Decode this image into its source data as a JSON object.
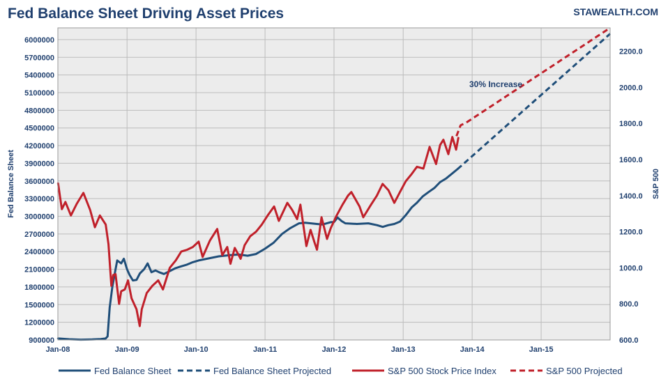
{
  "chart_data": {
    "type": "line",
    "title": "Fed Balance Sheet Driving Asset Prices",
    "brand": "STAWEALTH.COM",
    "annotation": "30% Increase",
    "grid": true,
    "legend_position": "bottom",
    "x_axis": {
      "type": "date",
      "range": [
        "2008-01-01",
        "2016-01-01"
      ],
      "ticks": [
        {
          "date": "2008-01-01",
          "label": "Jan-08"
        },
        {
          "date": "2009-01-01",
          "label": "Jan-09"
        },
        {
          "date": "2010-01-01",
          "label": "Jan-10"
        },
        {
          "date": "2011-01-01",
          "label": "Jan-11"
        },
        {
          "date": "2012-01-01",
          "label": "Jan-12"
        },
        {
          "date": "2013-01-01",
          "label": "Jan-13"
        },
        {
          "date": "2014-01-01",
          "label": "Jan-14"
        },
        {
          "date": "2015-01-01",
          "label": "Jan-15"
        }
      ]
    },
    "y_left": {
      "label": "Fed Balance Sheet",
      "range": [
        900000,
        6200000
      ],
      "ticks": [
        900000,
        1200000,
        1500000,
        1800000,
        2100000,
        2400000,
        2700000,
        3000000,
        3300000,
        3600000,
        3900000,
        4200000,
        4500000,
        4800000,
        5100000,
        5400000,
        5700000,
        6000000
      ]
    },
    "y_right": {
      "label": "S&P 500",
      "range": [
        600,
        2330
      ],
      "ticks": [
        "600.0",
        "800.0",
        "1000.0",
        "1200.0",
        "1400.0",
        "1600.0",
        "1800.0",
        "2000.0",
        "2200.0"
      ]
    },
    "series": [
      {
        "name": "Fed Balance Sheet",
        "axis": "left",
        "style": "solid",
        "color": "#1f4e79",
        "points": [
          [
            "2008-01-02",
            925000
          ],
          [
            "2008-03-01",
            912000
          ],
          [
            "2008-05-01",
            905000
          ],
          [
            "2008-07-01",
            908000
          ],
          [
            "2008-08-15",
            915000
          ],
          [
            "2008-09-10",
            925000
          ],
          [
            "2008-09-20",
            960000
          ],
          [
            "2008-10-01",
            1450000
          ],
          [
            "2008-10-15",
            1800000
          ],
          [
            "2008-11-01",
            2100000
          ],
          [
            "2008-11-10",
            2250000
          ],
          [
            "2008-12-01",
            2200000
          ],
          [
            "2008-12-15",
            2280000
          ],
          [
            "2009-01-01",
            2100000
          ],
          [
            "2009-01-15",
            2000000
          ],
          [
            "2009-02-01",
            1910000
          ],
          [
            "2009-02-20",
            1920000
          ],
          [
            "2009-03-10",
            2030000
          ],
          [
            "2009-04-01",
            2100000
          ],
          [
            "2009-04-20",
            2200000
          ],
          [
            "2009-05-10",
            2050000
          ],
          [
            "2009-06-01",
            2080000
          ],
          [
            "2009-06-20",
            2050000
          ],
          [
            "2009-07-15",
            2020000
          ],
          [
            "2009-08-15",
            2070000
          ],
          [
            "2009-09-15",
            2120000
          ],
          [
            "2009-10-15",
            2150000
          ],
          [
            "2009-11-15",
            2180000
          ],
          [
            "2009-12-15",
            2220000
          ],
          [
            "2010-01-15",
            2250000
          ],
          [
            "2010-03-01",
            2280000
          ],
          [
            "2010-05-01",
            2320000
          ],
          [
            "2010-07-01",
            2340000
          ],
          [
            "2010-08-15",
            2350000
          ],
          [
            "2010-10-01",
            2330000
          ],
          [
            "2010-11-15",
            2360000
          ],
          [
            "2011-01-01",
            2450000
          ],
          [
            "2011-02-15",
            2550000
          ],
          [
            "2011-04-01",
            2700000
          ],
          [
            "2011-05-15",
            2800000
          ],
          [
            "2011-06-30",
            2880000
          ],
          [
            "2011-08-01",
            2890000
          ],
          [
            "2011-09-01",
            2880000
          ],
          [
            "2011-10-01",
            2870000
          ],
          [
            "2011-11-01",
            2860000
          ],
          [
            "2011-12-15",
            2900000
          ],
          [
            "2012-01-01",
            2900000
          ],
          [
            "2012-01-20",
            2980000
          ],
          [
            "2012-02-10",
            2920000
          ],
          [
            "2012-03-01",
            2880000
          ],
          [
            "2012-05-01",
            2870000
          ],
          [
            "2012-07-01",
            2880000
          ],
          [
            "2012-08-15",
            2850000
          ],
          [
            "2012-09-15",
            2820000
          ],
          [
            "2012-10-15",
            2850000
          ],
          [
            "2012-11-15",
            2870000
          ],
          [
            "2012-12-15",
            2910000
          ],
          [
            "2013-01-15",
            3020000
          ],
          [
            "2013-02-15",
            3150000
          ],
          [
            "2013-03-15",
            3230000
          ],
          [
            "2013-04-15",
            3340000
          ],
          [
            "2013-05-15",
            3410000
          ],
          [
            "2013-06-15",
            3480000
          ],
          [
            "2013-07-15",
            3580000
          ],
          [
            "2013-08-15",
            3640000
          ],
          [
            "2013-09-15",
            3720000
          ],
          [
            "2013-10-15",
            3800000
          ]
        ]
      },
      {
        "name": "Fed Balance Sheet Projected",
        "axis": "left",
        "style": "dashed",
        "color": "#1f4e79",
        "points": [
          [
            "2013-10-15",
            3800000
          ],
          [
            "2016-01-01",
            6100000
          ]
        ]
      },
      {
        "name": "S&P 500 Stock Price Index",
        "axis": "right",
        "style": "solid",
        "color": "#c0202a",
        "points": [
          [
            "2008-01-02",
            1468
          ],
          [
            "2008-01-22",
            1325
          ],
          [
            "2008-02-10",
            1365
          ],
          [
            "2008-03-10",
            1290
          ],
          [
            "2008-04-10",
            1355
          ],
          [
            "2008-05-15",
            1415
          ],
          [
            "2008-06-20",
            1320
          ],
          [
            "2008-07-15",
            1225
          ],
          [
            "2008-08-10",
            1290
          ],
          [
            "2008-09-10",
            1240
          ],
          [
            "2008-09-25",
            1130
          ],
          [
            "2008-10-10",
            900
          ],
          [
            "2008-10-20",
            960
          ],
          [
            "2008-11-01",
            965
          ],
          [
            "2008-11-20",
            800
          ],
          [
            "2008-12-01",
            870
          ],
          [
            "2008-12-20",
            880
          ],
          [
            "2009-01-06",
            930
          ],
          [
            "2009-01-25",
            830
          ],
          [
            "2009-02-20",
            770
          ],
          [
            "2009-03-09",
            677
          ],
          [
            "2009-03-20",
            770
          ],
          [
            "2009-04-15",
            860
          ],
          [
            "2009-05-15",
            900
          ],
          [
            "2009-06-15",
            930
          ],
          [
            "2009-07-10",
            880
          ],
          [
            "2009-08-15",
            1000
          ],
          [
            "2009-09-15",
            1040
          ],
          [
            "2009-10-15",
            1090
          ],
          [
            "2009-11-15",
            1100
          ],
          [
            "2009-12-15",
            1115
          ],
          [
            "2010-01-15",
            1145
          ],
          [
            "2010-02-05",
            1060
          ],
          [
            "2010-03-15",
            1150
          ],
          [
            "2010-04-23",
            1215
          ],
          [
            "2010-05-20",
            1070
          ],
          [
            "2010-06-15",
            1115
          ],
          [
            "2010-07-02",
            1022
          ],
          [
            "2010-07-25",
            1110
          ],
          [
            "2010-08-25",
            1050
          ],
          [
            "2010-09-15",
            1125
          ],
          [
            "2010-10-15",
            1175
          ],
          [
            "2010-11-15",
            1200
          ],
          [
            "2010-12-15",
            1240
          ],
          [
            "2011-01-15",
            1290
          ],
          [
            "2011-02-18",
            1340
          ],
          [
            "2011-03-15",
            1260
          ],
          [
            "2011-04-29",
            1360
          ],
          [
            "2011-05-25",
            1320
          ],
          [
            "2011-06-20",
            1270
          ],
          [
            "2011-07-07",
            1350
          ],
          [
            "2011-08-08",
            1120
          ],
          [
            "2011-08-30",
            1210
          ],
          [
            "2011-09-20",
            1140
          ],
          [
            "2011-10-03",
            1100
          ],
          [
            "2011-10-27",
            1280
          ],
          [
            "2011-11-25",
            1160
          ],
          [
            "2011-12-15",
            1220
          ],
          [
            "2012-01-15",
            1290
          ],
          [
            "2012-02-15",
            1350
          ],
          [
            "2012-03-15",
            1400
          ],
          [
            "2012-04-02",
            1420
          ],
          [
            "2012-05-15",
            1340
          ],
          [
            "2012-06-04",
            1280
          ],
          [
            "2012-07-15",
            1350
          ],
          [
            "2012-08-15",
            1400
          ],
          [
            "2012-09-14",
            1465
          ],
          [
            "2012-10-15",
            1430
          ],
          [
            "2012-11-15",
            1360
          ],
          [
            "2012-12-15",
            1420
          ],
          [
            "2013-01-15",
            1480
          ],
          [
            "2013-02-15",
            1520
          ],
          [
            "2013-03-15",
            1560
          ],
          [
            "2013-04-18",
            1550
          ],
          [
            "2013-05-21",
            1670
          ],
          [
            "2013-06-24",
            1575
          ],
          [
            "2013-07-15",
            1680
          ],
          [
            "2013-08-02",
            1710
          ],
          [
            "2013-08-28",
            1630
          ],
          [
            "2013-09-18",
            1725
          ],
          [
            "2013-10-08",
            1655
          ],
          [
            "2013-10-20",
            1720
          ]
        ]
      },
      {
        "name": "S&P 500 Projected",
        "axis": "right",
        "style": "dashed",
        "color": "#c0202a",
        "points": [
          [
            "2013-10-10",
            1730
          ],
          [
            "2013-11-01",
            1790
          ],
          [
            "2013-12-01",
            1805
          ],
          [
            "2016-01-01",
            2330
          ]
        ]
      }
    ]
  }
}
